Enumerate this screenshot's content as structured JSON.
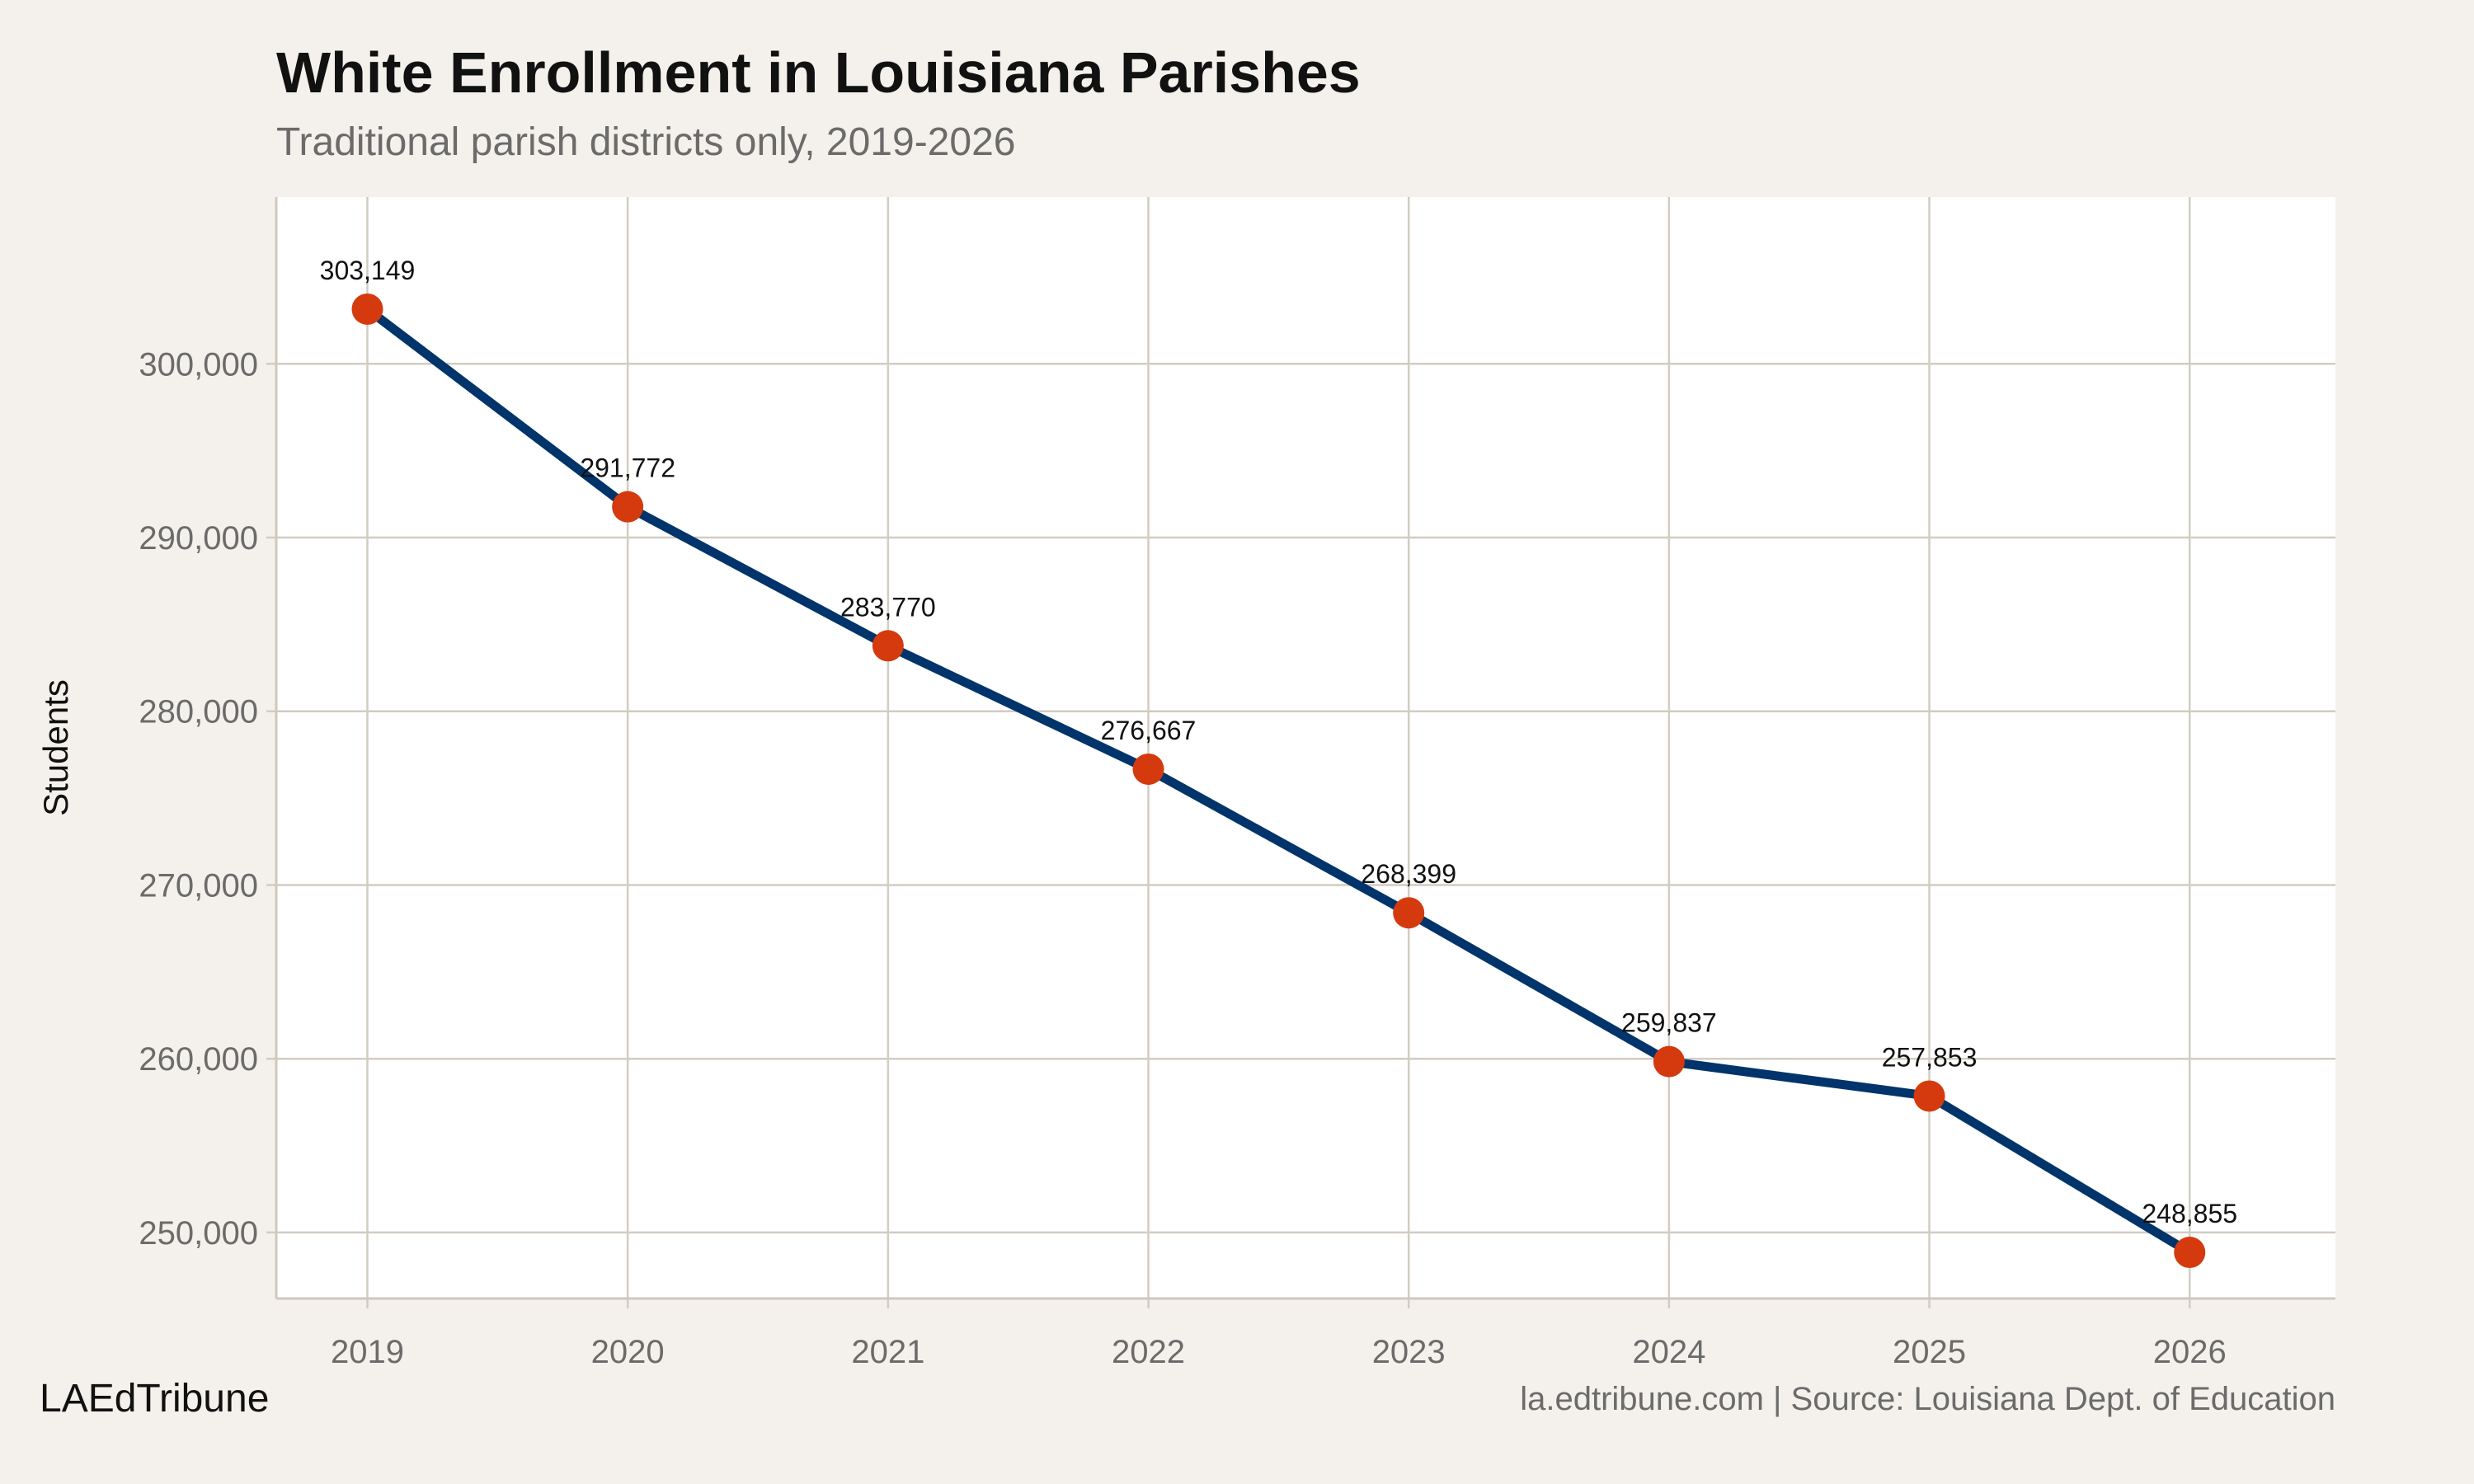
{
  "chart_data": {
    "type": "line",
    "title": "White Enrollment in Louisiana Parishes",
    "subtitle": "Traditional parish districts only, 2019-2026",
    "xlabel": "",
    "ylabel": "Students",
    "x": [
      2019,
      2020,
      2021,
      2022,
      2023,
      2024,
      2025,
      2026
    ],
    "values": [
      303149,
      291772,
      283770,
      276667,
      268399,
      259837,
      257853,
      248855
    ],
    "data_labels": [
      "303,149",
      "291,772",
      "283,770",
      "276,667",
      "268,399",
      "259,837",
      "257,853",
      "248,855"
    ],
    "x_ticks": [
      "2019",
      "2020",
      "2021",
      "2022",
      "2023",
      "2024",
      "2025",
      "2026"
    ],
    "y_ticks": [
      250000,
      260000,
      270000,
      280000,
      290000,
      300000
    ],
    "y_tick_labels": [
      "250,000",
      "260,000",
      "270,000",
      "280,000",
      "290,000",
      "300,000"
    ],
    "xlim": [
      2018.65,
      2026.56
    ],
    "ylim": [
      246200,
      309600
    ],
    "grid": true,
    "legend": "none",
    "colors": {
      "line": "#00346a",
      "point": "#d43a0e",
      "grid": "#d2ccc3",
      "panel": "#ffffff",
      "background": "#f4f1ec"
    }
  },
  "footer": {
    "brand": "LAEdTribune",
    "source": "la.edtribune.com | Source: Louisiana Dept. of Education"
  }
}
